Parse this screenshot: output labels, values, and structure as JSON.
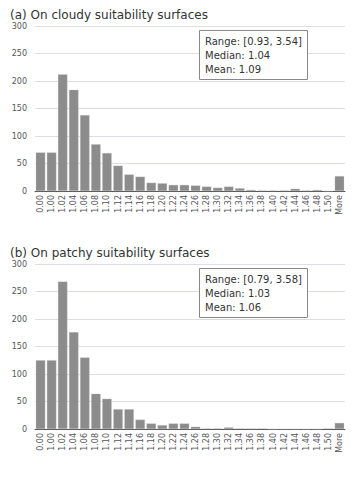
{
  "chart_data": [
    {
      "type": "bar",
      "title": "(a) On cloudy suitability surfaces",
      "categories": [
        "0.00",
        "1.00",
        "1.02",
        "1.04",
        "1.06",
        "1.08",
        "1.10",
        "1.12",
        "1.14",
        "1.16",
        "1.18",
        "1.20",
        "1.22",
        "1.24",
        "1.26",
        "1.28",
        "1.30",
        "1.32",
        "1.34",
        "1.36",
        "1.38",
        "1.40",
        "1.42",
        "1.44",
        "1.46",
        "1.48",
        "1.50",
        "More"
      ],
      "values": [
        70,
        70,
        212,
        184,
        138,
        85,
        69,
        46,
        30,
        26,
        15,
        14,
        11,
        11,
        10,
        8,
        6,
        8,
        5,
        2,
        1,
        1,
        1,
        4,
        1,
        2,
        0,
        27
      ],
      "color": "#8c8c8c",
      "ylim": [
        0,
        300
      ],
      "yticks": [
        0,
        50,
        100,
        150,
        200,
        250,
        300
      ],
      "grid": true,
      "annotation": "Range: [0.93, 3.54]\nMedian: 1.04\nMean: 1.09"
    },
    {
      "type": "bar",
      "title": "(b) On patchy suitability surfaces",
      "categories": [
        "0.00",
        "1.00",
        "1.02",
        "1.04",
        "1.06",
        "1.08",
        "1.10",
        "1.12",
        "1.14",
        "1.16",
        "1.18",
        "1.20",
        "1.22",
        "1.24",
        "1.26",
        "1.28",
        "1.30",
        "1.32",
        "1.34",
        "1.36",
        "1.38",
        "1.40",
        "1.42",
        "1.44",
        "1.46",
        "1.48",
        "1.50",
        "More"
      ],
      "values": [
        125,
        125,
        268,
        176,
        130,
        64,
        55,
        36,
        36,
        17,
        10,
        7,
        10,
        10,
        4,
        1,
        1,
        3,
        1,
        1,
        1,
        0,
        0,
        0,
        0,
        0,
        1,
        11
      ],
      "color": "#8c8c8c",
      "ylim": [
        0,
        300
      ],
      "yticks": [
        0,
        50,
        100,
        150,
        200,
        250,
        300
      ],
      "grid": true,
      "annotation": "Range: [0.79, 3.58]\nMedian: 1.03\nMean: 1.06"
    }
  ]
}
